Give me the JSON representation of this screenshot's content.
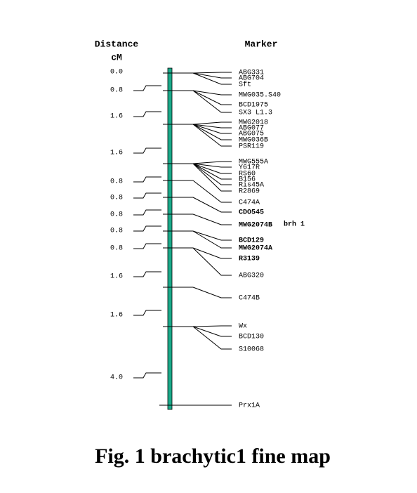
{
  "header": {
    "distance": "Distance",
    "unit": "cM",
    "marker": "Marker"
  },
  "distances": [
    "0.0",
    "0.8",
    "1.6",
    "1.6",
    "0.8",
    "0.8",
    "0.8",
    "0.8",
    "0.8",
    "1.6",
    "1.6",
    "4.0"
  ],
  "loci": [
    {
      "markers": [
        "ABG331",
        "ABG704",
        "Sft"
      ]
    },
    {
      "markers": [
        "MWG035.S40",
        "BCD1975",
        "SX3 L1.3"
      ]
    },
    {
      "markers": [
        "MWG2018",
        "ABG077",
        "ABG075",
        "MWG036B",
        "PSR119"
      ]
    },
    {
      "markers": [
        "MWG555A",
        "Y617R",
        "RS60",
        "B156",
        "Ris45A",
        "R2869"
      ]
    },
    {
      "markers": [
        "C474A"
      ]
    },
    {
      "markers": [
        "CDO545"
      ]
    },
    {
      "markers": [
        "MWG2074B"
      ],
      "note": "brh 1"
    },
    {
      "markers": [
        "BCD129",
        "MWG2074A"
      ]
    },
    {
      "markers": [
        "R3139",
        "ABG320"
      ]
    },
    {
      "markers": [
        "C474B"
      ]
    },
    {
      "markers": [
        "Wx",
        "BCD130",
        "S10068"
      ]
    },
    {
      "markers": [
        "Prx1A"
      ]
    }
  ],
  "caption": "Fig. 1  brachytic1 fine map"
}
